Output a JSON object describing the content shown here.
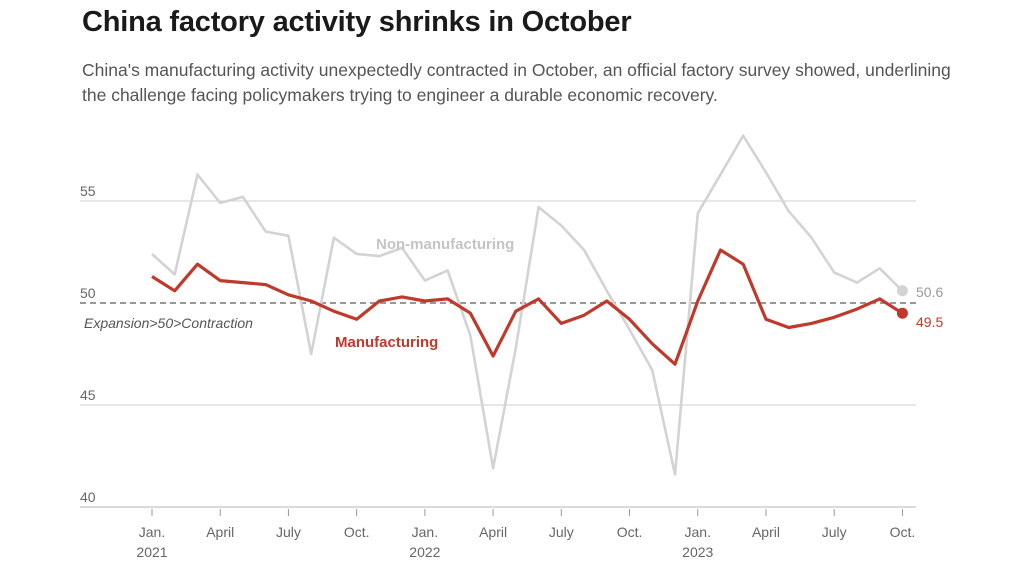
{
  "header": {
    "title": "China factory activity shrinks in October",
    "subtitle": "China's manufacturing activity unexpectedly contracted in October, an official factory survey showed, underlining the challenge facing policymakers trying to engineer a durable economic recovery."
  },
  "chart_data": {
    "type": "line",
    "x": [
      "2021-01",
      "2021-02",
      "2021-03",
      "2021-04",
      "2021-05",
      "2021-06",
      "2021-07",
      "2021-08",
      "2021-09",
      "2021-10",
      "2021-11",
      "2021-12",
      "2022-01",
      "2022-02",
      "2022-03",
      "2022-04",
      "2022-05",
      "2022-06",
      "2022-07",
      "2022-08",
      "2022-09",
      "2022-10",
      "2022-11",
      "2022-12",
      "2023-01",
      "2023-02",
      "2023-03",
      "2023-04",
      "2023-05",
      "2023-06",
      "2023-07",
      "2023-08",
      "2023-09",
      "2023-10"
    ],
    "series": [
      {
        "name": "Non-manufacturing",
        "color": "#d3d3d3",
        "values": [
          52.4,
          51.4,
          56.3,
          54.9,
          55.2,
          53.5,
          53.3,
          47.5,
          53.2,
          52.4,
          52.3,
          52.7,
          51.1,
          51.6,
          48.4,
          41.9,
          47.8,
          54.7,
          53.8,
          52.6,
          50.6,
          48.7,
          46.7,
          41.6,
          54.4,
          56.3,
          58.2,
          56.4,
          54.5,
          53.2,
          51.5,
          51.0,
          51.7,
          50.6
        ]
      },
      {
        "name": "Manufacturing",
        "color": "#c0392b",
        "values": [
          51.3,
          50.6,
          51.9,
          51.1,
          51.0,
          50.9,
          50.4,
          50.1,
          49.6,
          49.2,
          50.1,
          50.3,
          50.1,
          50.2,
          49.5,
          47.4,
          49.6,
          50.2,
          49.0,
          49.4,
          50.1,
          49.2,
          48.0,
          47.0,
          50.1,
          52.6,
          51.9,
          49.2,
          48.8,
          49.0,
          49.3,
          49.7,
          50.2,
          49.5
        ]
      }
    ],
    "ylim": [
      40,
      58.5
    ],
    "y_ticks": [
      "55",
      "50",
      "45",
      "40"
    ],
    "x_ticks": [
      {
        "line1": "Jan.",
        "line2": "2021"
      },
      {
        "line1": "April",
        "line2": ""
      },
      {
        "line1": "July",
        "line2": ""
      },
      {
        "line1": "Oct.",
        "line2": ""
      },
      {
        "line1": "Jan.",
        "line2": "2022"
      },
      {
        "line1": "April",
        "line2": ""
      },
      {
        "line1": "July",
        "line2": ""
      },
      {
        "line1": "Oct.",
        "line2": ""
      },
      {
        "line1": "Jan.",
        "line2": "2023"
      },
      {
        "line1": "April",
        "line2": ""
      },
      {
        "line1": "July",
        "line2": ""
      },
      {
        "line1": "Oct.",
        "line2": ""
      }
    ],
    "reference_line": {
      "value": 50,
      "label": "Expansion>50>Contraction",
      "color": "#777777"
    },
    "series_labels": {
      "non_manufacturing": "Non-manufacturing",
      "manufacturing": "Manufacturing"
    },
    "end_labels": {
      "non_manufacturing": "50.6",
      "manufacturing": "49.5"
    },
    "grid": true
  }
}
